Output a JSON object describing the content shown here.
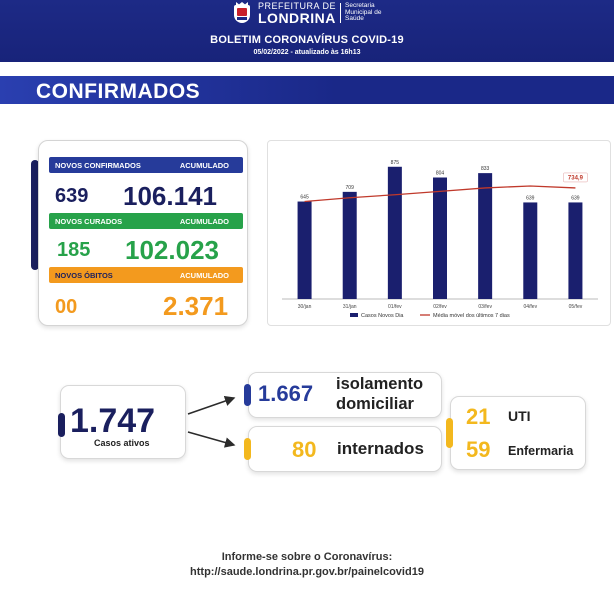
{
  "header": {
    "pref_label": "PREFEITURA DE",
    "city": "LONDRINA",
    "secretaria": [
      "Secretaria",
      "Municipal de",
      "Saúde"
    ],
    "title": "BOLETIM CORONAVÍRUS COVID-19",
    "date": "05/02/2022 - atualizado às 16h13"
  },
  "section_title": "CONFIRMADOS",
  "summary": {
    "novos_confirmados_label": "NOVOS CONFIRMADOS",
    "acumulado_label": "ACUMULADO",
    "novos_confirmados": "639",
    "confirmados_acumulado": "106.141",
    "novos_curados_label": "NOVOS CURADOS",
    "novos_curados": "185",
    "curados_acumulado": "102.023",
    "novos_obitos_label": "NOVOS ÓBITOS",
    "novos_obitos": "00",
    "obitos_acumulado": "2.371"
  },
  "chart_data": {
    "type": "bar",
    "categories": [
      "30/jan",
      "31/jan",
      "01/fev",
      "02/fev",
      "03/fev",
      "04/fev",
      "05/fev"
    ],
    "series": [
      {
        "name": "Casos Novos Dia",
        "type": "bar",
        "values": [
          645,
          709,
          875,
          804,
          833,
          639,
          639
        ]
      },
      {
        "name": "Média móvel dos últimos 7 dias",
        "type": "line",
        "values": [
          645,
          670,
          690,
          712,
          735,
          748,
          734.9
        ]
      }
    ],
    "highlight_label": "734,9",
    "ylim": [
      0,
      900
    ],
    "grid": false,
    "legend": "bottom",
    "colors": {
      "bar": "#1a1f6e",
      "line": "#c0392b"
    }
  },
  "active": {
    "total": "1.747",
    "label": "Casos ativos",
    "isolamento_num": "1.667",
    "isolamento_label_1": "isolamento",
    "isolamento_label_2": "domiciliar",
    "internados_num": "80",
    "internados_label": "internados",
    "uti_num": "21",
    "uti_label": "UTI",
    "enfermaria_num": "59",
    "enfermaria_label": "Enfermaria"
  },
  "footer": {
    "line1": "Informe-se sobre o Coronavírus:",
    "line2": "http://saude.londrina.pr.gov.br/painelcovid19"
  }
}
